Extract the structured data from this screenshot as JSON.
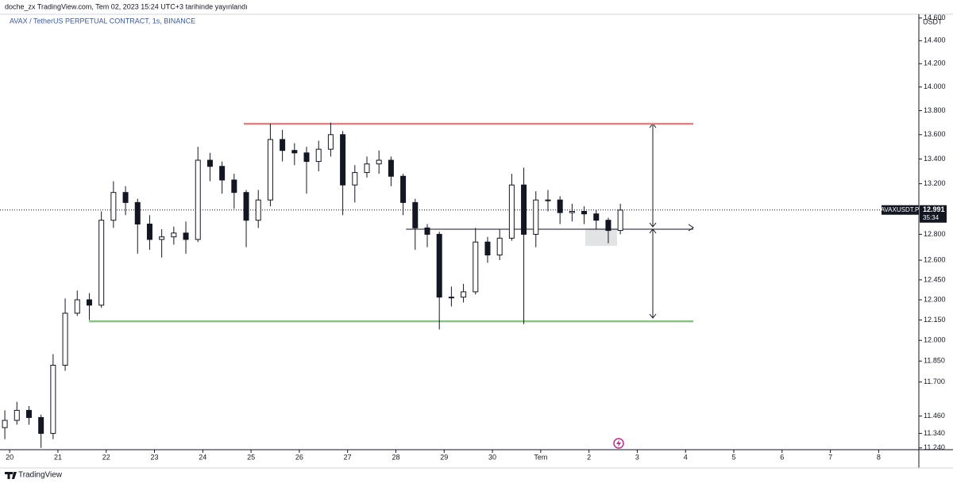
{
  "chart_data": {
    "type": "candlestick",
    "publisher": "doche_zx TradingView.com, Tem 02, 2023 15:24 UTC+3 tarihinde yayınlandı",
    "title": "AVAX / TetherUS PERPETUAL CONTRACT, 1s, BINANCE",
    "brand": "TradingView",
    "price_unit": "USDT",
    "symbol_short": "AVAXUSDT.P",
    "last_price": 12.991,
    "countdown": "35:34",
    "log_scale": true,
    "up_color": "#ffffff",
    "down_color": "#131722",
    "x": [
      -0.1,
      0.15,
      0.4,
      0.65,
      0.9,
      1.15,
      1.4,
      1.65,
      1.9,
      2.15,
      2.4,
      2.65,
      2.9,
      3.15,
      3.4,
      3.65,
      3.9,
      4.15,
      4.4,
      4.65,
      4.9,
      5.15,
      5.4,
      5.65,
      5.9,
      6.15,
      6.4,
      6.65,
      6.9,
      7.15,
      7.4,
      7.65,
      7.9,
      8.15,
      8.4,
      8.65,
      8.9,
      9.15,
      9.4,
      9.65,
      9.9,
      10.15,
      10.4,
      10.65,
      10.9,
      11.15,
      11.4,
      11.65,
      11.9,
      12.15,
      12.4,
      12.65
    ],
    "open": [
      11.38,
      11.43,
      11.5,
      11.45,
      11.34,
      11.82,
      12.2,
      12.3,
      12.26,
      12.91,
      13.13,
      13.05,
      12.88,
      12.76,
      12.78,
      12.81,
      12.76,
      13.39,
      13.34,
      13.23,
      13.13,
      12.91,
      13.07,
      13.56,
      13.47,
      13.45,
      13.38,
      13.48,
      13.6,
      13.19,
      13.29,
      13.36,
      13.39,
      13.26,
      13.05,
      12.85,
      12.8,
      12.32,
      12.32,
      12.36,
      12.74,
      12.64,
      12.77,
      13.19,
      12.8,
      13.07,
      13.07,
      12.97,
      12.98,
      12.96,
      12.91,
      12.83
    ],
    "high": [
      11.5,
      11.56,
      11.53,
      11.47,
      11.9,
      12.31,
      12.37,
      12.35,
      12.98,
      13.22,
      13.18,
      13.08,
      12.95,
      12.84,
      12.86,
      12.9,
      13.5,
      13.45,
      13.38,
      13.28,
      13.15,
      13.15,
      13.69,
      13.64,
      13.53,
      13.5,
      13.55,
      13.7,
      13.63,
      13.35,
      13.42,
      13.47,
      13.42,
      13.28,
      13.08,
      12.88,
      12.82,
      12.4,
      12.42,
      12.85,
      12.78,
      12.84,
      13.28,
      13.33,
      13.14,
      13.15,
      13.1,
      13.04,
      13.02,
      12.99,
      12.93,
      13.04
    ],
    "low": [
      11.3,
      11.4,
      11.4,
      11.24,
      11.3,
      11.78,
      12.18,
      12.15,
      12.24,
      12.85,
      12.95,
      12.65,
      12.68,
      12.62,
      12.72,
      12.65,
      12.74,
      13.22,
      13.12,
      13.0,
      12.7,
      12.85,
      13.02,
      13.38,
      13.35,
      13.12,
      13.3,
      13.42,
      12.95,
      13.05,
      13.25,
      13.28,
      13.18,
      12.95,
      12.68,
      12.7,
      12.08,
      12.25,
      12.28,
      12.34,
      12.58,
      12.6,
      12.75,
      12.12,
      12.7,
      12.98,
      12.88,
      12.9,
      12.88,
      12.84,
      12.73,
      12.8
    ],
    "close": [
      11.43,
      11.5,
      11.45,
      11.34,
      11.82,
      12.2,
      12.3,
      12.26,
      12.91,
      13.13,
      13.05,
      12.88,
      12.76,
      12.78,
      12.81,
      12.76,
      13.39,
      13.34,
      13.23,
      13.13,
      12.91,
      13.07,
      13.56,
      13.47,
      13.45,
      13.38,
      13.48,
      13.6,
      13.19,
      13.29,
      13.36,
      13.39,
      13.26,
      13.05,
      12.85,
      12.8,
      12.32,
      12.32,
      12.36,
      12.74,
      12.64,
      12.77,
      13.19,
      12.8,
      13.07,
      13.07,
      12.97,
      12.98,
      12.96,
      12.91,
      12.83,
      12.99
    ],
    "levels": [
      {
        "value": 13.69,
        "from": 4.85,
        "to": 14.16,
        "color": "#d98686"
      },
      {
        "value": 12.14,
        "from": 1.64,
        "to": 14.16,
        "color": "#8cbf8c"
      },
      {
        "value": 12.84,
        "from": 8.21,
        "to": 14.16,
        "color": "#131722"
      }
    ],
    "xlim": [
      -0.2,
      18.8
    ],
    "xticks": [
      {
        "value": 0,
        "label": "20"
      },
      {
        "value": 1,
        "label": "21"
      },
      {
        "value": 2,
        "label": "22"
      },
      {
        "value": 3,
        "label": "23"
      },
      {
        "value": 4,
        "label": "24"
      },
      {
        "value": 5,
        "label": "25"
      },
      {
        "value": 6,
        "label": "26"
      },
      {
        "value": 7,
        "label": "27"
      },
      {
        "value": 8,
        "label": "28"
      },
      {
        "value": 9,
        "label": "29"
      },
      {
        "value": 10,
        "label": "30"
      },
      {
        "value": 11,
        "label": "Tem"
      },
      {
        "value": 12,
        "label": "2"
      },
      {
        "value": 13,
        "label": "3"
      },
      {
        "value": 14,
        "label": "4"
      },
      {
        "value": 15,
        "label": "5"
      },
      {
        "value": 16,
        "label": "6"
      },
      {
        "value": 17,
        "label": "7"
      },
      {
        "value": 18,
        "label": "8"
      }
    ],
    "ylim": [
      11.228,
      14.69
    ],
    "yticks": [
      {
        "value": 14.6,
        "label": "14.600"
      },
      {
        "value": 14.4,
        "label": "14.400"
      },
      {
        "value": 14.2,
        "label": "14.200"
      },
      {
        "value": 14,
        "label": "14.000"
      },
      {
        "value": 13.8,
        "label": "13.800"
      },
      {
        "value": 13.6,
        "label": "13.600"
      },
      {
        "value": 13.4,
        "label": "13.400"
      },
      {
        "value": 13.2,
        "label": "13.200"
      },
      {
        "value": 12.8,
        "label": "12.800"
      },
      {
        "value": 12.6,
        "label": "12.600"
      },
      {
        "value": 12.45,
        "label": "12.450"
      },
      {
        "value": 12.3,
        "label": "12.300"
      },
      {
        "value": 12.15,
        "label": "12.150"
      },
      {
        "value": 12,
        "label": "12.000"
      },
      {
        "value": 11.85,
        "label": "11.850"
      },
      {
        "value": 11.7,
        "label": "11.700"
      },
      {
        "value": 11.46,
        "label": "11.460"
      },
      {
        "value": 11.34,
        "label": "11.340"
      },
      {
        "value": 11.24,
        "label": "11.240"
      }
    ]
  }
}
